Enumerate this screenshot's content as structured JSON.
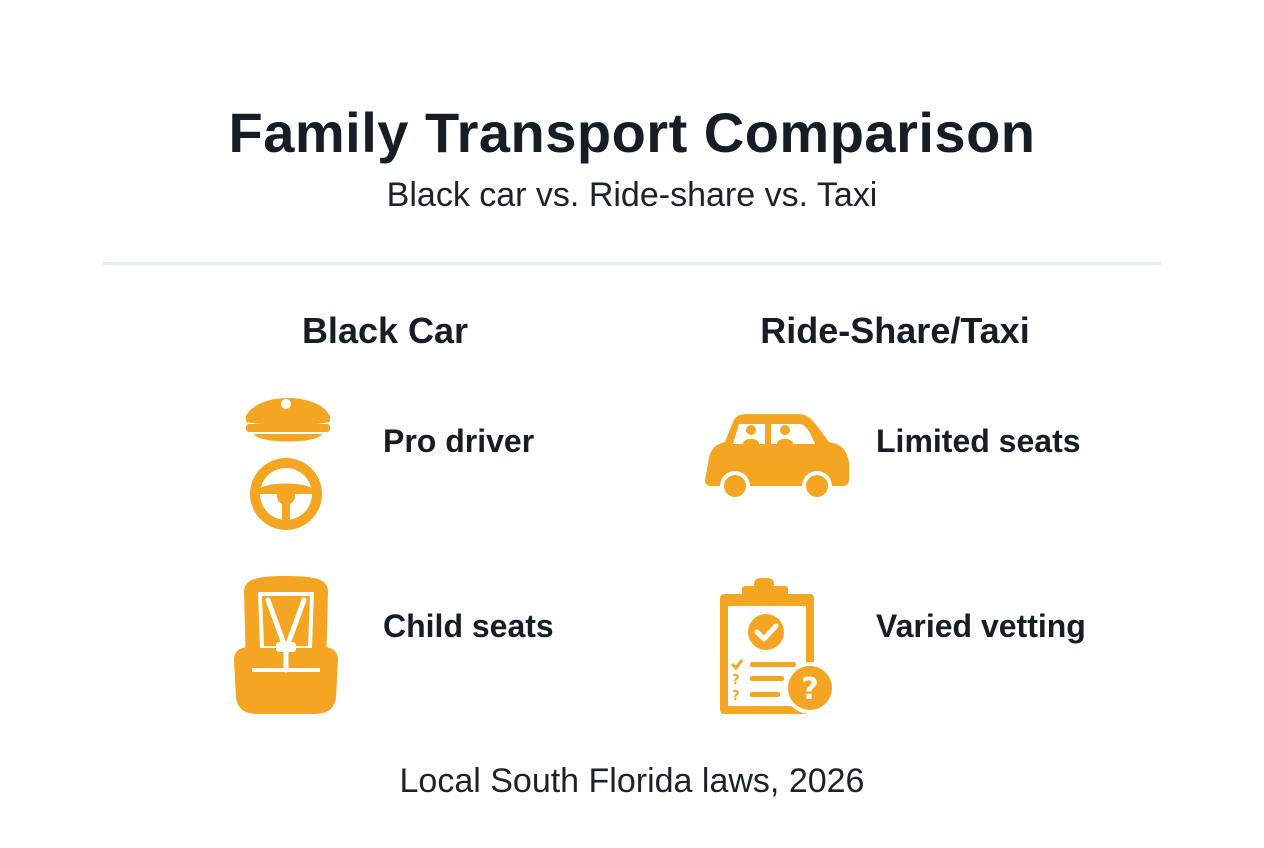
{
  "header": {
    "title": "Family Transport Comparison",
    "subtitle": "Black car vs. Ride-share vs. Taxi"
  },
  "columns": [
    {
      "heading": "Black Car",
      "items": [
        {
          "label": "Pro driver",
          "icon": "chauffeur-cap-steering-wheel-icon"
        },
        {
          "label": "Child seats",
          "icon": "child-car-seat-icon"
        }
      ]
    },
    {
      "heading": "Ride-Share/Taxi",
      "items": [
        {
          "label": "Limited seats",
          "icon": "car-passengers-icon"
        },
        {
          "label": "Varied vetting",
          "icon": "clipboard-question-icon"
        }
      ]
    }
  ],
  "footer": {
    "note": "Local South Florida laws, 2026"
  },
  "colors": {
    "accent": "#F4A622",
    "text": "#161D27",
    "divider": "#E4EBF2",
    "background": "#FFFFFF"
  }
}
